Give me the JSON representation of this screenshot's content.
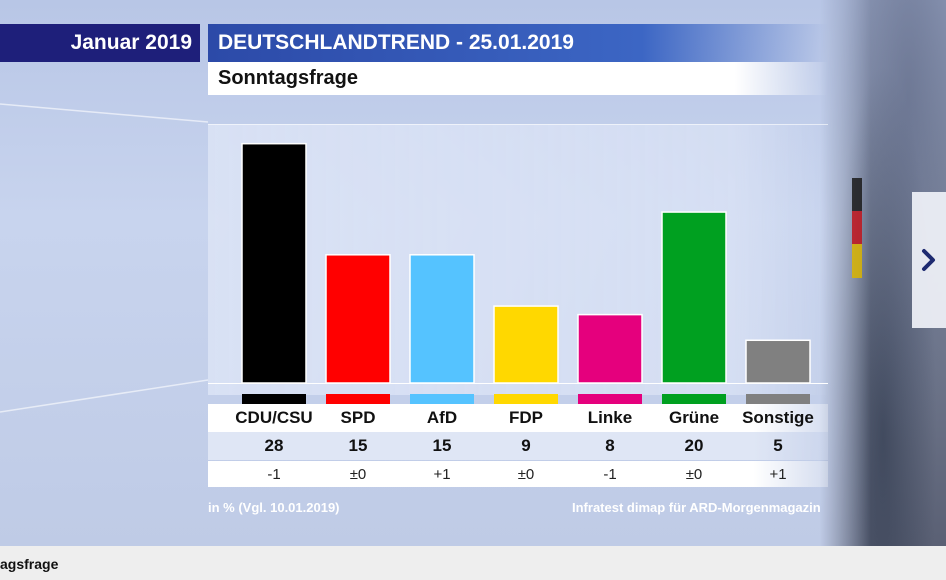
{
  "header": {
    "month_label": "Januar 2019",
    "title": "DEUTSCHLANDTREND - 25.01.2019",
    "subtitle": "Sonntagsfrage"
  },
  "chart_data": {
    "type": "bar",
    "title": "Sonntagsfrage",
    "categories": [
      "CDU/CSU",
      "SPD",
      "AfD",
      "FDP",
      "Linke",
      "Grüne",
      "Sonstige"
    ],
    "values": [
      28,
      15,
      15,
      9,
      8,
      20,
      5
    ],
    "value_labels": [
      "28",
      "15",
      "15",
      "9",
      "8",
      "20",
      "5"
    ],
    "changes": [
      "-1",
      "±0",
      "+1",
      "±0",
      "-1",
      "±0",
      "+1"
    ],
    "colors": [
      "#000000",
      "#ff0000",
      "#55c3ff",
      "#ffd800",
      "#e5007d",
      "#00a020",
      "#808080"
    ],
    "ylim": [
      0,
      30
    ],
    "grid": false,
    "xlabel": "",
    "ylabel": ""
  },
  "footer": {
    "note": "in % (Vgl. 10.01.2019)",
    "source": "Infratest dimap für ARD-Morgenmagazin"
  },
  "navigation": {
    "next_icon": "chevron-right-icon"
  },
  "caption": "agsfrage"
}
